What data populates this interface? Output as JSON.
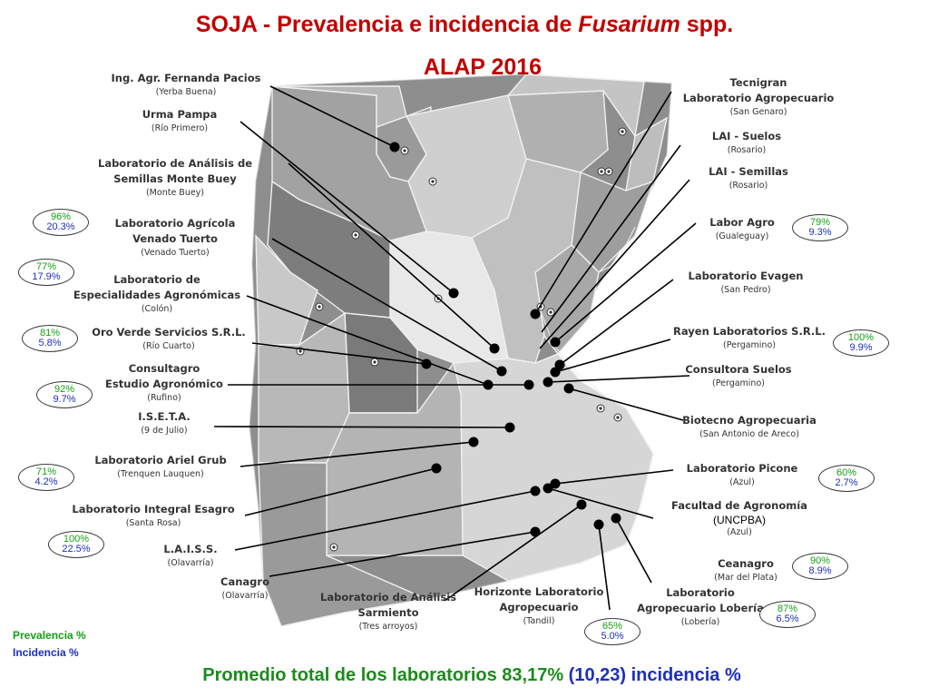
{
  "title": {
    "main": "SOJA - Prevalencia e incidencia de ",
    "italic": "Fusarium",
    "tail": " spp.",
    "sub": "ALAP 2016"
  },
  "labs": [
    {
      "name": "Ing. Agr. Fernanda Pacios",
      "loc": "(Yerba Buena)"
    },
    {
      "name": "Urma Pampa",
      "loc": "(Río Primero)"
    },
    {
      "name": "Laboratorio de Análisis de\nSemillas Monte Buey",
      "loc": "(Monte Buey)"
    },
    {
      "name": "Laboratorio Agrícola\nVenado Tuerto",
      "loc": "(Venado Tuerto)"
    },
    {
      "name": "Laboratorio de\nEspecialidades Agronómicas",
      "loc": "(Colón)"
    },
    {
      "name": "Oro Verde Servicios S.R.L.",
      "loc": "(Río Cuarto)"
    },
    {
      "name": "Consultagro\nEstudio Agronómico",
      "loc": "(Rufino)"
    },
    {
      "name": "I.S.E.T.A.",
      "loc": "(9 de Julio)"
    },
    {
      "name": "Laboratorio Ariel Grub",
      "loc": "(Trenquen Lauquen)"
    },
    {
      "name": "Laboratorio Integral Esagro",
      "loc": "(Santa Rosa)"
    },
    {
      "name": "L.A.I.S.S.",
      "loc": "(Olavarría)"
    },
    {
      "name": "Canagro",
      "loc": "(Olavarría)"
    },
    {
      "name": "Laboratorio de Análisis\nSarmiento",
      "loc": "(Tres arroyos)"
    },
    {
      "name": "Horizonte Laboratorio\nAgropecuario",
      "loc": "(Tandil)"
    },
    {
      "name": "Laboratorio\nAgropecuario Lobería",
      "loc": "(Lobería)"
    },
    {
      "name": "Tecnigran\nLaboratorio Agropecuario",
      "loc": "(San Genaro)"
    },
    {
      "name": "LAI - Suelos",
      "loc": "(Rosario)"
    },
    {
      "name": "LAI - Semillas",
      "loc": "(Rosario)"
    },
    {
      "name": "Labor Agro",
      "loc": "(Gualeguay)"
    },
    {
      "name": "Laboratorio Evagen",
      "loc": "(San Pedro)"
    },
    {
      "name": "Rayen Laboratorios S.R.L.",
      "loc": "(Pergamino)"
    },
    {
      "name": "Consultora Suelos",
      "loc": "(Pergamino)"
    },
    {
      "name": "Biotecno Agropecuaria",
      "loc": "(San  Antonio de Areco)"
    },
    {
      "name": "Laboratorio Picone",
      "loc": "(Azul)"
    },
    {
      "name": "Facultad de Agronomía",
      "sub": "(UNCPBA)",
      "loc": "(Azul)"
    },
    {
      "name": "Ceanagro",
      "loc": "(Mar del Plata)"
    }
  ],
  "badges": [
    {
      "prev": "96%",
      "inc": "20.3%"
    },
    {
      "prev": "77%",
      "inc": "17.9%"
    },
    {
      "prev": "81%",
      "inc": "5.8%"
    },
    {
      "prev": "92%",
      "inc": "9.7%"
    },
    {
      "prev": "71%",
      "inc": "4.2%"
    },
    {
      "prev": "100%",
      "inc": "22.5%"
    },
    {
      "prev": "79%",
      "inc": "9.3%"
    },
    {
      "prev": "100%",
      "inc": "9.9%"
    },
    {
      "prev": "60%",
      "inc": "2.7%"
    },
    {
      "prev": "90%",
      "inc": "8.9%"
    },
    {
      "prev": "87%",
      "inc": "6.5%"
    },
    {
      "prev": "65%",
      "inc": "5.0%"
    }
  ],
  "legend": {
    "prevalence": "Prevalencia %",
    "incidence": "Incidencia %"
  },
  "footer": {
    "text": "Promedio total de los laboratorios 83,17% ",
    "blue": "(10,23) incidencia %"
  },
  "colors": {
    "title": "#c00000",
    "prevalence": "#14a014",
    "incidence": "#1c2fc0",
    "footer": "#1a8c1a"
  }
}
